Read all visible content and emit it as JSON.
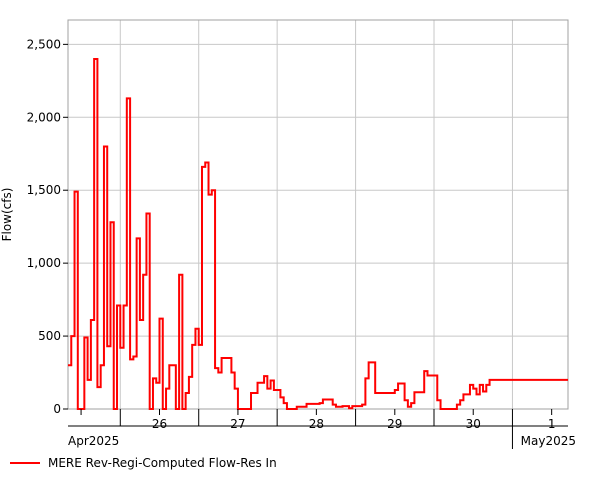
{
  "chart_data": {
    "type": "line",
    "title": "",
    "ylabel": "Flow(cfs)",
    "xlabel": "",
    "ylim": [
      0,
      2667
    ],
    "xlim": [
      "2025-04-25T08:00",
      "2025-05-01T17:00"
    ],
    "grid": true,
    "legend_position": "bottom-left",
    "y_ticks": [
      0,
      500,
      1000,
      1500,
      2000,
      2500
    ],
    "y_tick_labels": [
      "0",
      "500",
      "1,000",
      "1,500",
      "2,000",
      "2,500"
    ],
    "day_labels": [
      {
        "label": "26",
        "date": "2025-04-26T12:00"
      },
      {
        "label": "27",
        "date": "2025-04-27T12:00"
      },
      {
        "label": "28",
        "date": "2025-04-28T12:00"
      },
      {
        "label": "29",
        "date": "2025-04-29T12:00"
      },
      {
        "label": "30",
        "date": "2025-04-30T12:00"
      },
      {
        "label": "1",
        "date": "2025-05-01T12:00"
      }
    ],
    "month_labels": [
      {
        "label": "Apr2025",
        "anchor": "start"
      },
      {
        "label": "May2025",
        "anchor": "end"
      }
    ],
    "series": [
      {
        "name": "MERE Rev-Regi-Computed Flow-Res In",
        "color": "#ff0000",
        "step": "post",
        "points": [
          [
            "2025-04-25T08:00",
            300
          ],
          [
            "2025-04-25T09:00",
            500
          ],
          [
            "2025-04-25T10:00",
            1490
          ],
          [
            "2025-04-25T11:00",
            0
          ],
          [
            "2025-04-25T13:00",
            490
          ],
          [
            "2025-04-25T14:00",
            200
          ],
          [
            "2025-04-25T15:00",
            610
          ],
          [
            "2025-04-25T16:00",
            2400
          ],
          [
            "2025-04-25T17:00",
            150
          ],
          [
            "2025-04-25T18:00",
            300
          ],
          [
            "2025-04-25T19:00",
            1800
          ],
          [
            "2025-04-25T20:00",
            430
          ],
          [
            "2025-04-25T21:00",
            1280
          ],
          [
            "2025-04-25T22:00",
            0
          ],
          [
            "2025-04-25T23:00",
            710
          ],
          [
            "2025-04-26T00:00",
            420
          ],
          [
            "2025-04-26T01:00",
            710
          ],
          [
            "2025-04-26T02:00",
            2130
          ],
          [
            "2025-04-26T03:00",
            340
          ],
          [
            "2025-04-26T04:00",
            360
          ],
          [
            "2025-04-26T05:00",
            1170
          ],
          [
            "2025-04-26T06:00",
            610
          ],
          [
            "2025-04-26T07:00",
            920
          ],
          [
            "2025-04-26T08:00",
            1340
          ],
          [
            "2025-04-26T09:00",
            0
          ],
          [
            "2025-04-26T10:00",
            210
          ],
          [
            "2025-04-26T11:00",
            180
          ],
          [
            "2025-04-26T12:00",
            620
          ],
          [
            "2025-04-26T13:00",
            0
          ],
          [
            "2025-04-26T14:00",
            140
          ],
          [
            "2025-04-26T15:00",
            300
          ],
          [
            "2025-04-26T17:00",
            0
          ],
          [
            "2025-04-26T18:00",
            920
          ],
          [
            "2025-04-26T19:00",
            0
          ],
          [
            "2025-04-26T20:00",
            110
          ],
          [
            "2025-04-26T21:00",
            220
          ],
          [
            "2025-04-26T22:00",
            440
          ],
          [
            "2025-04-26T23:00",
            550
          ],
          [
            "2025-04-27T00:00",
            440
          ],
          [
            "2025-04-27T01:00",
            1660
          ],
          [
            "2025-04-27T02:00",
            1690
          ],
          [
            "2025-04-27T03:00",
            1470
          ],
          [
            "2025-04-27T04:00",
            1500
          ],
          [
            "2025-04-27T05:00",
            280
          ],
          [
            "2025-04-27T06:00",
            250
          ],
          [
            "2025-04-27T07:00",
            350
          ],
          [
            "2025-04-27T10:00",
            250
          ],
          [
            "2025-04-27T11:00",
            140
          ],
          [
            "2025-04-27T12:00",
            0
          ],
          [
            "2025-04-27T16:00",
            110
          ],
          [
            "2025-04-27T18:00",
            180
          ],
          [
            "2025-04-27T20:00",
            225
          ],
          [
            "2025-04-27T21:00",
            140
          ],
          [
            "2025-04-27T22:00",
            195
          ],
          [
            "2025-04-27T23:00",
            130
          ],
          [
            "2025-04-28T01:00",
            80
          ],
          [
            "2025-04-28T02:00",
            40
          ],
          [
            "2025-04-28T03:00",
            0
          ],
          [
            "2025-04-28T06:00",
            15
          ],
          [
            "2025-04-28T09:00",
            35
          ],
          [
            "2025-04-28T13:00",
            40
          ],
          [
            "2025-04-28T14:00",
            65
          ],
          [
            "2025-04-28T17:00",
            30
          ],
          [
            "2025-04-28T18:00",
            15
          ],
          [
            "2025-04-28T20:00",
            20
          ],
          [
            "2025-04-28T22:00",
            5
          ],
          [
            "2025-04-28T23:00",
            20
          ],
          [
            "2025-04-29T02:00",
            30
          ],
          [
            "2025-04-29T03:00",
            210
          ],
          [
            "2025-04-29T04:00",
            320
          ],
          [
            "2025-04-29T06:00",
            110
          ],
          [
            "2025-04-29T12:00",
            130
          ],
          [
            "2025-04-29T13:00",
            175
          ],
          [
            "2025-04-29T15:00",
            60
          ],
          [
            "2025-04-29T16:00",
            15
          ],
          [
            "2025-04-29T17:00",
            40
          ],
          [
            "2025-04-29T18:00",
            115
          ],
          [
            "2025-04-29T21:00",
            260
          ],
          [
            "2025-04-29T22:00",
            230
          ],
          [
            "2025-04-30T01:00",
            60
          ],
          [
            "2025-04-30T02:00",
            0
          ],
          [
            "2025-04-30T07:00",
            30
          ],
          [
            "2025-04-30T08:00",
            60
          ],
          [
            "2025-04-30T09:00",
            100
          ],
          [
            "2025-04-30T11:00",
            165
          ],
          [
            "2025-04-30T12:00",
            140
          ],
          [
            "2025-04-30T13:00",
            100
          ],
          [
            "2025-04-30T14:00",
            165
          ],
          [
            "2025-04-30T15:00",
            120
          ],
          [
            "2025-04-30T16:00",
            165
          ],
          [
            "2025-04-30T17:00",
            200
          ],
          [
            "2025-05-01T17:00",
            200
          ]
        ]
      }
    ]
  }
}
